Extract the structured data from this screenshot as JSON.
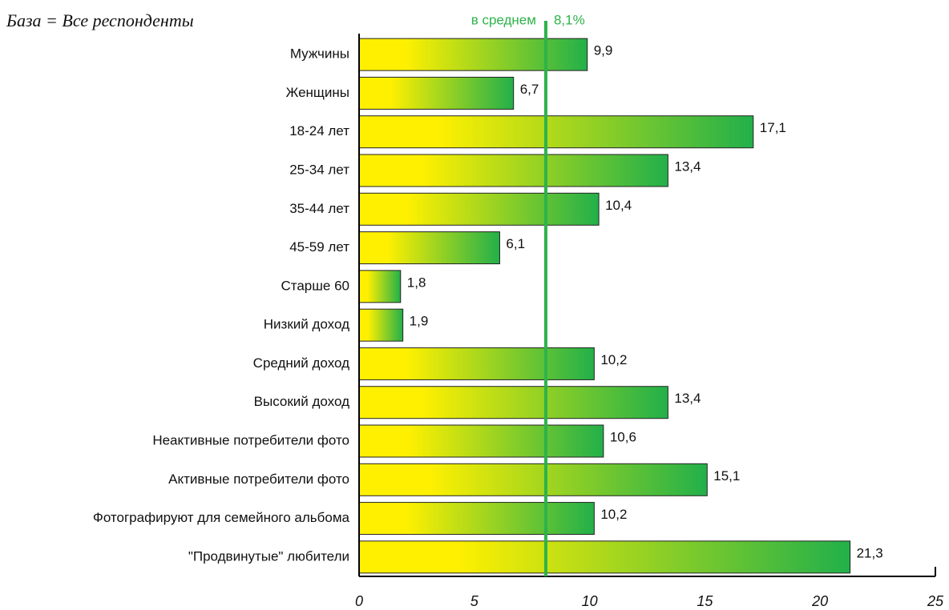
{
  "chart_data": {
    "type": "barh",
    "subtitle": "База = Все респонденты",
    "categories": [
      "Мужчины",
      "Женщины",
      "18-24 лет",
      "25-34 лет",
      "35-44 лет",
      "45-59 лет",
      "Старше 60",
      "Низкий доход",
      "Средний доход",
      "Высокий доход",
      "Неактивные потребители фото",
      "Активные потребители фото",
      "Фотографируют для семейного альбома",
      "\"Продвинутые\" любители"
    ],
    "values": [
      9.9,
      6.7,
      17.1,
      13.4,
      10.4,
      6.1,
      1.8,
      1.9,
      10.2,
      13.4,
      10.6,
      15.1,
      10.2,
      21.3
    ],
    "value_labels": [
      "9,9",
      "6,7",
      "17,1",
      "13,4",
      "10,4",
      "6,1",
      "1,8",
      "1,9",
      "10,2",
      "13,4",
      "10,6",
      "15,1",
      "10,2",
      "21,3"
    ],
    "colors": [
      "#fff000",
      "#22b04a"
    ],
    "xlim": [
      0,
      25
    ],
    "xticks": [
      0,
      5,
      10,
      15,
      20,
      25
    ],
    "average_line": {
      "label": "в среднем",
      "value": 8.1,
      "value_label": "8,1%",
      "color": "#2db34a"
    }
  }
}
